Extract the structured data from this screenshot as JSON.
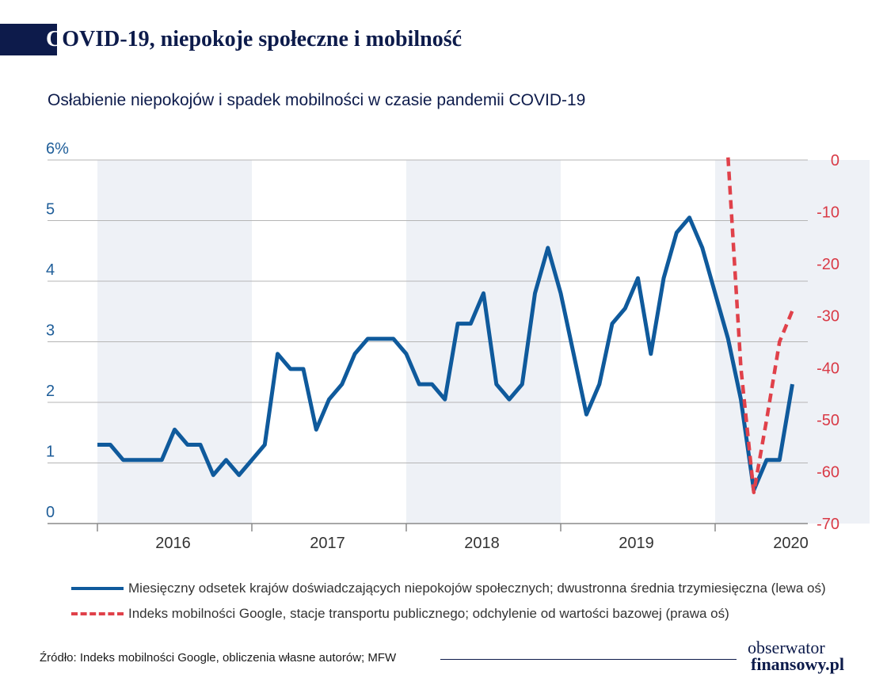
{
  "header": {
    "title_initial": "C",
    "title": "OVID-19, niepokoje społeczne i mobilność"
  },
  "chart_data": {
    "type": "line",
    "subtitle": "Osłabienie niepokojów i spadek mobilności w czasie pandemii COVID-19",
    "left_axis": {
      "ylim": [
        0,
        6
      ],
      "ticks": [
        "0",
        "1",
        "2",
        "3",
        "4",
        "5",
        "6%"
      ]
    },
    "right_axis": {
      "ylim": [
        -70,
        0
      ],
      "ticks": [
        "0",
        "-10",
        "-20",
        "-30",
        "-40",
        "-50",
        "-60",
        "-70"
      ]
    },
    "x_axis": {
      "categories": [
        "2016",
        "2017",
        "2018",
        "2019",
        "2020"
      ]
    },
    "grid": true,
    "shaded_years": [
      "2016",
      "2018",
      "2020"
    ],
    "series": [
      {
        "name": "Miesięczny odsetek krajów doświadczających niepokojów społecznych; dwustronna średnia trzymiesięczna (lewa oś)",
        "axis": "left",
        "color": "#0f5a9c",
        "style": "solid",
        "points": [
          [
            "2016-01",
            1.3
          ],
          [
            "2016-02",
            1.3
          ],
          [
            "2016-03",
            1.05
          ],
          [
            "2016-04",
            1.05
          ],
          [
            "2016-05",
            1.05
          ],
          [
            "2016-06",
            1.05
          ],
          [
            "2016-07",
            1.55
          ],
          [
            "2016-08",
            1.3
          ],
          [
            "2016-09",
            1.3
          ],
          [
            "2016-10",
            0.8
          ],
          [
            "2016-11",
            1.05
          ],
          [
            "2016-12",
            0.8
          ],
          [
            "2017-01",
            1.05
          ],
          [
            "2017-02",
            1.3
          ],
          [
            "2017-03",
            2.8
          ],
          [
            "2017-04",
            2.55
          ],
          [
            "2017-05",
            2.55
          ],
          [
            "2017-06",
            1.55
          ],
          [
            "2017-07",
            2.05
          ],
          [
            "2017-08",
            2.3
          ],
          [
            "2017-09",
            2.8
          ],
          [
            "2017-10",
            3.05
          ],
          [
            "2017-11",
            3.05
          ],
          [
            "2017-12",
            3.05
          ],
          [
            "2018-01",
            2.8
          ],
          [
            "2018-02",
            2.3
          ],
          [
            "2018-03",
            2.3
          ],
          [
            "2018-04",
            2.05
          ],
          [
            "2018-05",
            3.3
          ],
          [
            "2018-06",
            3.3
          ],
          [
            "2018-07",
            3.8
          ],
          [
            "2018-08",
            2.3
          ],
          [
            "2018-09",
            2.05
          ],
          [
            "2018-10",
            2.3
          ],
          [
            "2018-11",
            3.8
          ],
          [
            "2018-12",
            4.55
          ],
          [
            "2019-01",
            3.8
          ],
          [
            "2019-02",
            2.8
          ],
          [
            "2019-03",
            1.8
          ],
          [
            "2019-04",
            2.3
          ],
          [
            "2019-05",
            3.3
          ],
          [
            "2019-06",
            3.55
          ],
          [
            "2019-07",
            4.05
          ],
          [
            "2019-08",
            2.8
          ],
          [
            "2019-09",
            4.05
          ],
          [
            "2019-10",
            4.8
          ],
          [
            "2019-11",
            5.05
          ],
          [
            "2019-12",
            4.55
          ],
          [
            "2020-01",
            3.8
          ],
          [
            "2020-02",
            3.05
          ],
          [
            "2020-03",
            2.05
          ],
          [
            "2020-04",
            0.55
          ],
          [
            "2020-05",
            1.05
          ],
          [
            "2020-06",
            1.05
          ],
          [
            "2020-07",
            2.3
          ]
        ]
      },
      {
        "name": "Indeks mobilności Google, stacje transportu publicznego; odchylenie od wartości bazowej (prawa oś)",
        "axis": "right",
        "color": "#e0414a",
        "style": "dashed",
        "points": [
          [
            "2020-02",
            0.5
          ],
          [
            "2020-03",
            -40
          ],
          [
            "2020-04",
            -64
          ],
          [
            "2020-05",
            -50
          ],
          [
            "2020-06",
            -35
          ],
          [
            "2020-07",
            -29
          ]
        ]
      }
    ]
  },
  "footer": {
    "source": "Źródło: Indeks mobilności Google, obliczenia własne autorów; MFW",
    "logo_line1": "obserwator",
    "logo_line2": "finansowy.pl"
  }
}
